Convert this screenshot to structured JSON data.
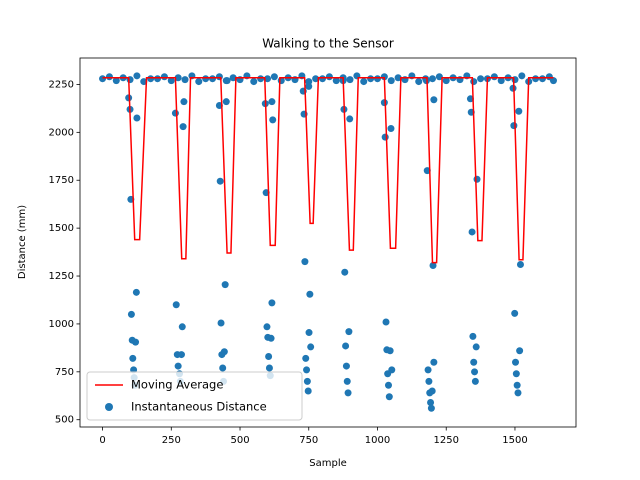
{
  "chart_data": {
    "type": "scatter",
    "title": "Walking to the Sensor",
    "x_label": "Sample",
    "y_label": "Distance (mm)",
    "xlim": [
      -82,
      1722
    ],
    "xticks": [
      0,
      250,
      500,
      750,
      1000,
      1250,
      1500
    ],
    "ylim": [
      462,
      2388
    ],
    "yticks": [
      500,
      750,
      1000,
      1250,
      1500,
      1750,
      2000,
      2250
    ],
    "grid": false,
    "legend": "lower left",
    "series": [
      {
        "name": "Moving Average",
        "type": "line",
        "color": "#ff0000",
        "x": [
          0,
          95,
          117,
          135,
          160,
          265,
          288,
          303,
          320,
          430,
          453,
          467,
          485,
          590,
          610,
          628,
          645,
          735,
          755,
          766,
          785,
          875,
          898,
          912,
          930,
          1025,
          1047,
          1066,
          1085,
          1180,
          1200,
          1215,
          1235,
          1345,
          1365,
          1380,
          1400,
          1495,
          1515,
          1529,
          1550,
          1640
        ],
        "values": [
          2285,
          2285,
          1440,
          1440,
          2285,
          2285,
          1340,
          1340,
          2285,
          2285,
          1370,
          1370,
          2285,
          2285,
          1410,
          1410,
          2285,
          2285,
          1525,
          1525,
          2285,
          2285,
          1385,
          1385,
          2285,
          2285,
          1395,
          1395,
          2285,
          2285,
          1320,
          1320,
          2285,
          2285,
          1435,
          1435,
          2285,
          2285,
          1335,
          1335,
          2285,
          2285
        ]
      },
      {
        "name": "Instantaneous Distance",
        "type": "scatter",
        "color": "#1f77b4",
        "x": [
          0,
          25,
          50,
          75,
          100,
          125,
          150,
          175,
          200,
          225,
          250,
          275,
          300,
          325,
          350,
          375,
          400,
          425,
          450,
          475,
          500,
          525,
          550,
          575,
          600,
          625,
          650,
          675,
          700,
          725,
          750,
          775,
          800,
          825,
          850,
          875,
          900,
          925,
          950,
          975,
          1000,
          1025,
          1050,
          1075,
          1100,
          1125,
          1150,
          1175,
          1200,
          1225,
          1250,
          1275,
          1300,
          1325,
          1350,
          1375,
          1400,
          1425,
          1450,
          1475,
          1500,
          1525,
          1550,
          1575,
          1600,
          1625,
          1640,
          95,
          100,
          103,
          105,
          108,
          110,
          113,
          115,
          118,
          120,
          123,
          125,
          265,
          268,
          272,
          275,
          280,
          283,
          287,
          290,
          293,
          296,
          425,
          428,
          431,
          434,
          437,
          440,
          443,
          446,
          450,
          453,
          592,
          595,
          598,
          601,
          604,
          607,
          610,
          613,
          616,
          619,
          616,
          730,
          733,
          736,
          739,
          742,
          745,
          748,
          751,
          754,
          757,
          750,
          875,
          878,
          881,
          884,
          887,
          890,
          893,
          896,
          899,
          1025,
          1028,
          1031,
          1034,
          1037,
          1040,
          1043,
          1046,
          1049,
          1052,
          1178,
          1181,
          1184,
          1187,
          1190,
          1193,
          1196,
          1199,
          1202,
          1205,
          1205,
          1338,
          1341,
          1344,
          1347,
          1350,
          1353,
          1356,
          1359,
          1362,
          1493,
          1496,
          1499,
          1502,
          1505,
          1508,
          1511,
          1514,
          1517,
          1520
        ],
        "values": [
          2280,
          2290,
          2270,
          2285,
          2275,
          2295,
          2265,
          2280,
          2280,
          2290,
          2270,
          2285,
          2275,
          2295,
          2265,
          2280,
          2280,
          2290,
          2270,
          2285,
          2275,
          2295,
          2265,
          2280,
          2280,
          2290,
          2270,
          2285,
          2275,
          2295,
          2265,
          2280,
          2280,
          2290,
          2270,
          2285,
          2275,
          2295,
          2265,
          2280,
          2280,
          2290,
          2270,
          2285,
          2275,
          2295,
          2265,
          2280,
          2280,
          2290,
          2270,
          2285,
          2275,
          2295,
          2265,
          2280,
          2280,
          2290,
          2270,
          2285,
          2275,
          2295,
          2265,
          2280,
          2280,
          2290,
          2270,
          2180,
          2120,
          1650,
          1050,
          915,
          820,
          760,
          720,
          680,
          905,
          1165,
          2075,
          2100,
          1100,
          840,
          780,
          740,
          700,
          840,
          985,
          2030,
          2160,
          2140,
          1745,
          1005,
          840,
          770,
          700,
          855,
          1205,
          2160,
          2270,
          2150,
          1685,
          985,
          930,
          830,
          770,
          730,
          925,
          1110,
          2065,
          2160,
          2215,
          2095,
          1325,
          820,
          760,
          700,
          650,
          955,
          1155,
          880,
          2240,
          2270,
          2120,
          1270,
          885,
          780,
          700,
          640,
          960,
          2070,
          2155,
          1975,
          1010,
          865,
          740,
          680,
          620,
          860,
          2020,
          760,
          2270,
          1800,
          760,
          700,
          640,
          590,
          560,
          650,
          1305,
          2170,
          800,
          2175,
          2105,
          1480,
          935,
          800,
          750,
          700,
          880,
          1755,
          2230,
          2035,
          1055,
          800,
          740,
          680,
          640,
          2110,
          860,
          1310
        ]
      }
    ]
  }
}
